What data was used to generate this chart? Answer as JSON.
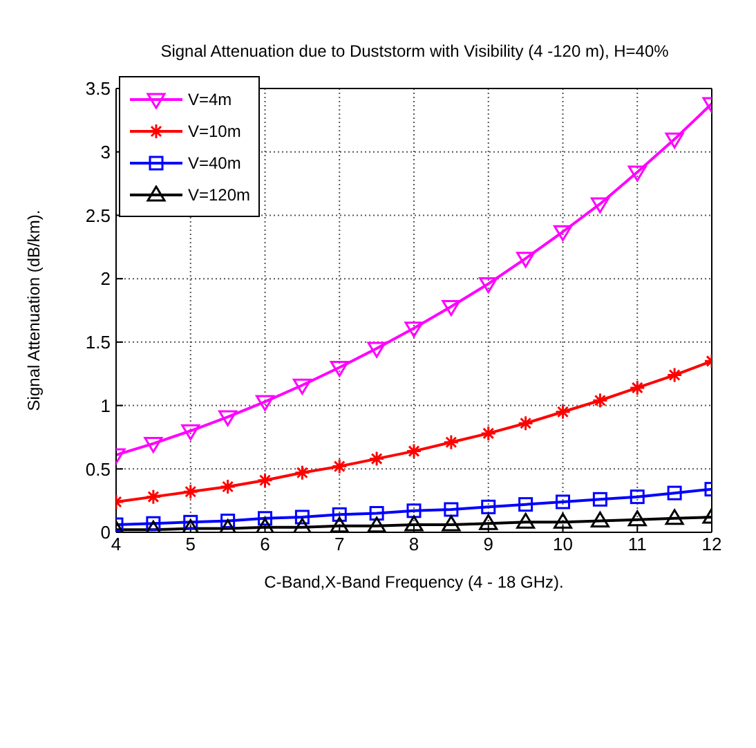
{
  "chart_data": {
    "type": "line",
    "title": "Signal Attenuation due to Duststorm with Visibility (4 -120 m), H=40%",
    "xlabel": "C-Band,X-Band Frequency (4 - 18 GHz).",
    "ylabel": "Signal Attenuation (dB/km).",
    "x": [
      4,
      4.5,
      5,
      5.5,
      6,
      6.5,
      7,
      7.5,
      8,
      8.5,
      9,
      9.5,
      10,
      10.5,
      11,
      11.5,
      12
    ],
    "series": [
      {
        "name": "V=4m",
        "color": "#ff00ff",
        "marker": "triangle-down",
        "values": [
          0.61,
          0.7,
          0.8,
          0.91,
          1.03,
          1.16,
          1.3,
          1.45,
          1.61,
          1.78,
          1.96,
          2.16,
          2.37,
          2.59,
          2.84,
          3.1,
          3.38
        ]
      },
      {
        "name": "V=10m",
        "color": "#ff0000",
        "marker": "cross",
        "values": [
          0.24,
          0.28,
          0.32,
          0.36,
          0.41,
          0.47,
          0.52,
          0.58,
          0.64,
          0.71,
          0.78,
          0.86,
          0.95,
          1.04,
          1.14,
          1.24,
          1.35
        ]
      },
      {
        "name": "V=40m",
        "color": "#0000ff",
        "marker": "square",
        "values": [
          0.06,
          0.07,
          0.08,
          0.09,
          0.11,
          0.12,
          0.14,
          0.15,
          0.17,
          0.18,
          0.2,
          0.22,
          0.24,
          0.26,
          0.28,
          0.31,
          0.34
        ]
      },
      {
        "name": "V=120m",
        "color": "#000000",
        "marker": "triangle",
        "values": [
          0.02,
          0.02,
          0.03,
          0.03,
          0.04,
          0.04,
          0.05,
          0.05,
          0.06,
          0.06,
          0.07,
          0.08,
          0.08,
          0.09,
          0.1,
          0.11,
          0.12
        ]
      }
    ],
    "xlim": [
      4,
      12
    ],
    "xticks": [
      4,
      5,
      6,
      7,
      8,
      9,
      10,
      11,
      12
    ],
    "ylim": [
      0,
      3.5
    ],
    "yticks": [
      0,
      0.5,
      1,
      1.5,
      2,
      2.5,
      3,
      3.5
    ],
    "grid": true,
    "legend": "top left",
    "line_style": "solid"
  }
}
